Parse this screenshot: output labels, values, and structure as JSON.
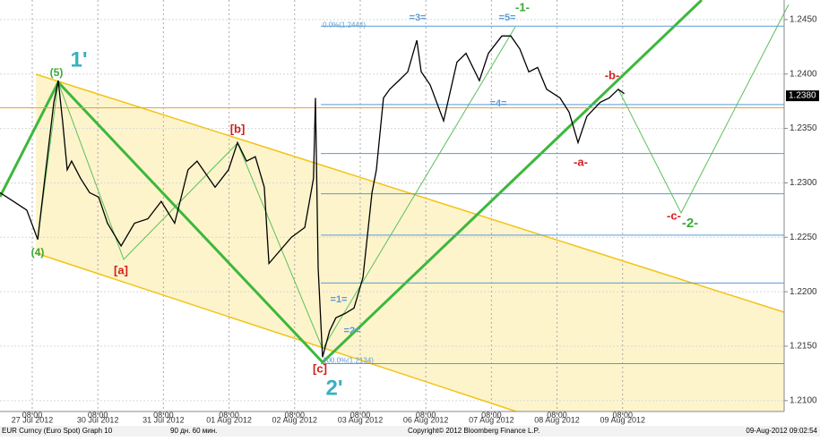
{
  "chart_data": {
    "type": "line",
    "x": [
      -3.8,
      1.1,
      6,
      10,
      12.6,
      15.9,
      17.5,
      19.1,
      20.8,
      22.4,
      25.7,
      29,
      32.3,
      35.5,
      40.5,
      45.4,
      50.3,
      55.2,
      60.1,
      65,
      68.3,
      74.9,
      79.8,
      83.1,
      86.4,
      89.6,
      92.9,
      94.6,
      102.8,
      107.7,
      110.9,
      111.6,
      112.6,
      114.2,
      116.8,
      119.1,
      122.4,
      125.7,
      129,
      132.3,
      133.9,
      136.5,
      138.8,
      142.1,
      145.4,
      148.7,
      150.3,
      153.6,
      158.5,
      163.4,
      166.7,
      171.6,
      174.9,
      179.8,
      183.1,
      186.4,
      189.7,
      192.9,
      196.2,
      201.1,
      204.4,
      207.7,
      210.9,
      215.8,
      219.1,
      222.4,
      224.6
    ],
    "values": [
      1.2291,
      1.2283,
      1.2275,
      1.2248,
      1.2304,
      1.2374,
      1.2394,
      1.2357,
      1.2312,
      1.232,
      1.2304,
      1.2291,
      1.2287,
      1.2263,
      1.2242,
      1.2263,
      1.2267,
      1.2283,
      1.2263,
      1.2312,
      1.232,
      1.2296,
      1.2312,
      1.2337,
      1.232,
      1.2324,
      1.2296,
      1.2226,
      1.225,
      1.2259,
      1.2304,
      1.2378,
      1.2222,
      1.214,
      1.2164,
      1.2176,
      1.218,
      1.2185,
      1.2213,
      1.2291,
      1.2312,
      1.2378,
      1.2386,
      1.2394,
      1.2402,
      1.2431,
      1.2402,
      1.239,
      1.2357,
      1.2411,
      1.2419,
      1.2394,
      1.2419,
      1.2435,
      1.2435,
      1.2423,
      1.2402,
      1.2406,
      1.2386,
      1.2378,
      1.2365,
      1.2337,
      1.2361,
      1.2374,
      1.2378,
      1.2386,
      1.2382
    ],
    "color": "#000000",
    "xlim": [
      -3.8,
      283.1
    ],
    "xticks": [
      {
        "value": 8,
        "label": "08:00"
      },
      {
        "value": 32,
        "label": "08:00"
      },
      {
        "value": 56,
        "label": "08:00"
      },
      {
        "value": 80,
        "label": "08:00"
      },
      {
        "value": 104,
        "label": "08:00"
      },
      {
        "value": 128,
        "label": "08:00"
      },
      {
        "value": 152,
        "label": "08:00"
      },
      {
        "value": 176,
        "label": "08:00"
      },
      {
        "value": 200,
        "label": "08:00"
      },
      {
        "value": 224,
        "label": "08:00"
      }
    ],
    "day_labels": [
      {
        "value": 8,
        "label": "27 Jul 2012"
      },
      {
        "value": 32,
        "label": "30 Jul 2012"
      },
      {
        "value": 56,
        "label": "31 Jul 2012"
      },
      {
        "value": 80,
        "label": "01 Aug 2012"
      },
      {
        "value": 104,
        "label": "02 Aug 2012"
      },
      {
        "value": 128,
        "label": "03 Aug 2012"
      },
      {
        "value": 152,
        "label": "06 Aug 2012"
      },
      {
        "value": 176,
        "label": "07 Aug 2012"
      },
      {
        "value": 200,
        "label": "08 Aug 2012"
      },
      {
        "value": 224,
        "label": "09 Aug 2012"
      }
    ],
    "ylim": [
      1.209,
      1.2468
    ],
    "yticks": [
      {
        "value": 1.21,
        "label": "1.2100"
      },
      {
        "value": 1.215,
        "label": "1.2150"
      },
      {
        "value": 1.22,
        "label": "1.2200"
      },
      {
        "value": 1.225,
        "label": "1.2250"
      },
      {
        "value": 1.23,
        "label": "1.2300"
      },
      {
        "value": 1.235,
        "label": "1.2350"
      },
      {
        "value": 1.24,
        "label": "1.2400"
      },
      {
        "value": 1.245,
        "label": "1.2450"
      }
    ],
    "last_price": {
      "value": 1.238,
      "label": "1.2380"
    },
    "reference_line": {
      "value": 1.2369,
      "color": "#f0a030"
    },
    "fib_levels": [
      1.2444,
      1.2372,
      1.2327,
      1.229,
      1.2252,
      1.2208,
      1.2134
    ],
    "fib_color": "#5a9bd5",
    "fib_labels": [
      "0.0%(1.2444)",
      "100.0%(1.2134)"
    ],
    "annotations": [
      {
        "text": "1'",
        "color": "#3ab0c0"
      },
      {
        "text": "(5)",
        "color": "#3aa83a"
      },
      {
        "text": "(4)",
        "color": "#3aa83a"
      },
      {
        "text": "[a]",
        "color": "#d02020"
      },
      {
        "text": "[b]",
        "color": "#d02020"
      },
      {
        "text": "[c]",
        "color": "#d02020"
      },
      {
        "text": "2'",
        "color": "#3ab0c0"
      },
      {
        "text": "=1=",
        "color": "#5a9bd5"
      },
      {
        "text": "=2=",
        "color": "#5a9bd5"
      },
      {
        "text": "=3=",
        "color": "#5a9bd5"
      },
      {
        "text": "=4=",
        "color": "#5a9bd5"
      },
      {
        "text": "=5=",
        "color": "#5a9bd5"
      },
      {
        "text": "-1-",
        "color": "#3aa83a"
      },
      {
        "text": "-a-",
        "color": "#d02020"
      },
      {
        "text": "-b-",
        "color": "#d02020"
      },
      {
        "text": "-c-",
        "color": "#d02020"
      },
      {
        "text": "-2-",
        "color": "#3aa83a"
      }
    ],
    "grid": true
  },
  "footer": {
    "security": "EUR Curncy (Euro Spot) Graph 10",
    "period": "90 дн. 60 мин.",
    "copyright": "Copyright© 2012 Bloomberg Finance L.P.",
    "timestamp": "09-Aug-2012 09:02:54"
  }
}
